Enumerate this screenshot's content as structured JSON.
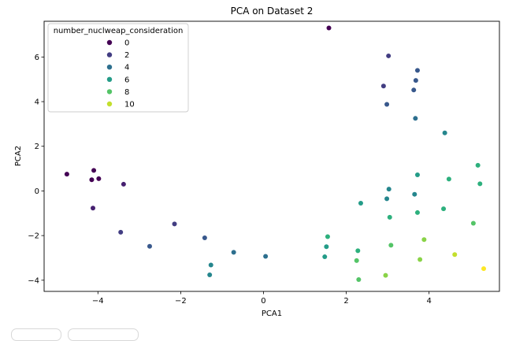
{
  "chart_data": {
    "type": "scatter",
    "title": "PCA on Dataset 2",
    "xlabel": "PCA1",
    "ylabel": "PCA2",
    "xlim": [
      -5.3,
      5.7
    ],
    "ylim": [
      -4.5,
      7.6
    ],
    "xticks": [
      -4,
      -2,
      0,
      2,
      4
    ],
    "yticks": [
      -4,
      -2,
      0,
      2,
      4,
      6
    ],
    "grid": false,
    "legend": {
      "title": "number_nuclweap_consideration",
      "placement": "top-left",
      "entries": [
        {
          "label": "0",
          "value": 0
        },
        {
          "label": "2",
          "value": 2
        },
        {
          "label": "4",
          "value": 4
        },
        {
          "label": "6",
          "value": 6
        },
        {
          "label": "8",
          "value": 8
        },
        {
          "label": "10",
          "value": 10
        }
      ]
    },
    "colormap": "viridis",
    "color_range": [
      0,
      11
    ],
    "points": [
      {
        "x": 1.58,
        "y": 7.3,
        "c": 0
      },
      {
        "x": -4.75,
        "y": 0.75,
        "c": 0
      },
      {
        "x": -4.1,
        "y": 0.92,
        "c": 0
      },
      {
        "x": -4.15,
        "y": 0.5,
        "c": 0
      },
      {
        "x": -3.98,
        "y": 0.55,
        "c": 0
      },
      {
        "x": -3.38,
        "y": 0.3,
        "c": 1
      },
      {
        "x": -4.12,
        "y": -0.77,
        "c": 1
      },
      {
        "x": -3.45,
        "y": -1.85,
        "c": 2
      },
      {
        "x": -2.15,
        "y": -1.48,
        "c": 2
      },
      {
        "x": 3.02,
        "y": 6.05,
        "c": 2
      },
      {
        "x": 2.9,
        "y": 4.7,
        "c": 2
      },
      {
        "x": -2.75,
        "y": -2.48,
        "c": 3
      },
      {
        "x": -1.42,
        "y": -2.1,
        "c": 3
      },
      {
        "x": 2.98,
        "y": 3.88,
        "c": 3
      },
      {
        "x": 3.72,
        "y": 5.4,
        "c": 3
      },
      {
        "x": 3.68,
        "y": 4.95,
        "c": 3
      },
      {
        "x": 3.63,
        "y": 4.52,
        "c": 3
      },
      {
        "x": -0.72,
        "y": -2.75,
        "c": 4
      },
      {
        "x": 0.05,
        "y": -2.93,
        "c": 4
      },
      {
        "x": 3.67,
        "y": 3.25,
        "c": 4
      },
      {
        "x": -1.27,
        "y": -3.32,
        "c": 5
      },
      {
        "x": -1.3,
        "y": -3.76,
        "c": 5
      },
      {
        "x": 4.38,
        "y": 2.6,
        "c": 5
      },
      {
        "x": 3.03,
        "y": 0.08,
        "c": 5
      },
      {
        "x": 2.98,
        "y": -0.35,
        "c": 5
      },
      {
        "x": 3.65,
        "y": -0.15,
        "c": 5
      },
      {
        "x": 1.48,
        "y": -2.95,
        "c": 6
      },
      {
        "x": 1.52,
        "y": -2.5,
        "c": 6
      },
      {
        "x": 2.35,
        "y": -0.55,
        "c": 6
      },
      {
        "x": 3.72,
        "y": 0.72,
        "c": 6
      },
      {
        "x": 5.18,
        "y": 1.15,
        "c": 7
      },
      {
        "x": 1.55,
        "y": -2.05,
        "c": 7
      },
      {
        "x": 3.05,
        "y": -1.18,
        "c": 7
      },
      {
        "x": 3.72,
        "y": -0.97,
        "c": 7
      },
      {
        "x": 4.35,
        "y": -0.8,
        "c": 7
      },
      {
        "x": 4.48,
        "y": 0.53,
        "c": 7
      },
      {
        "x": 5.23,
        "y": 0.32,
        "c": 7
      },
      {
        "x": 2.28,
        "y": -2.68,
        "c": 7
      },
      {
        "x": 2.25,
        "y": -3.12,
        "c": 8
      },
      {
        "x": 5.07,
        "y": -1.45,
        "c": 8
      },
      {
        "x": 2.3,
        "y": -3.97,
        "c": 8
      },
      {
        "x": 3.08,
        "y": -2.43,
        "c": 8
      },
      {
        "x": 2.95,
        "y": -3.78,
        "c": 9
      },
      {
        "x": 3.78,
        "y": -3.07,
        "c": 9
      },
      {
        "x": 3.88,
        "y": -2.18,
        "c": 9
      },
      {
        "x": 4.62,
        "y": -2.85,
        "c": 10
      },
      {
        "x": 5.32,
        "y": -3.48,
        "c": 11
      }
    ]
  },
  "colors": {
    "axis": "#000000",
    "legend_border": "#cccccc"
  }
}
